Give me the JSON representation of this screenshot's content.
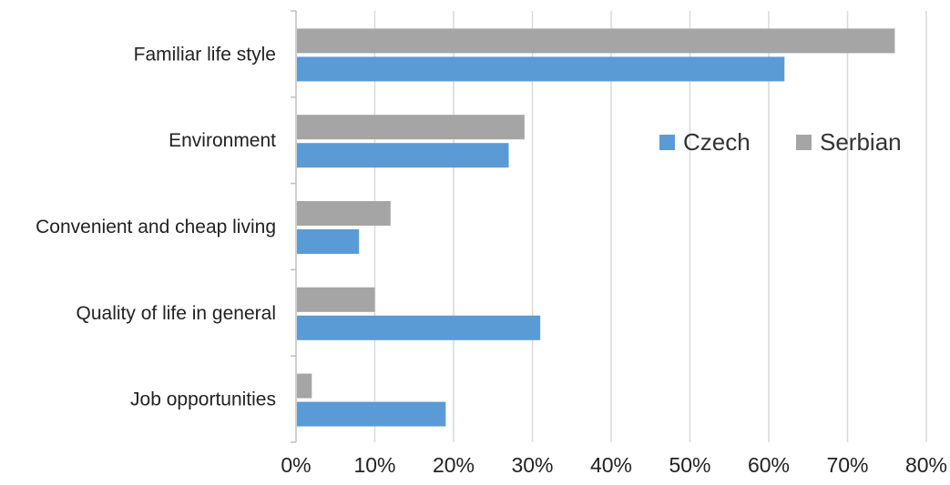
{
  "chart_data": {
    "type": "bar",
    "orientation": "horizontal",
    "title": "",
    "xlabel": "",
    "ylabel": "",
    "categories": [
      "Familiar life style",
      "Environment",
      "Convenient and cheap living",
      "Quality of life in general",
      "Job opportunities"
    ],
    "series": [
      {
        "name": "Serbian",
        "color": "#a5a5a5",
        "values": [
          76,
          29,
          12,
          10,
          2
        ]
      },
      {
        "name": "Czech",
        "color": "#5b9bd5",
        "values": [
          62,
          27,
          8,
          31,
          19
        ]
      }
    ],
    "xlim": [
      0,
      80
    ],
    "x_ticks": [
      0,
      10,
      20,
      30,
      40,
      50,
      60,
      70,
      80
    ],
    "x_tick_labels": [
      "0%",
      "10%",
      "20%",
      "30%",
      "40%",
      "50%",
      "60%",
      "70%",
      "80%"
    ],
    "grid": "vertical",
    "legend": {
      "position": "upper-right-inside",
      "entries": [
        {
          "name": "Czech",
          "color": "#5b9bd5"
        },
        {
          "name": "Serbian",
          "color": "#a5a5a5"
        }
      ]
    }
  }
}
